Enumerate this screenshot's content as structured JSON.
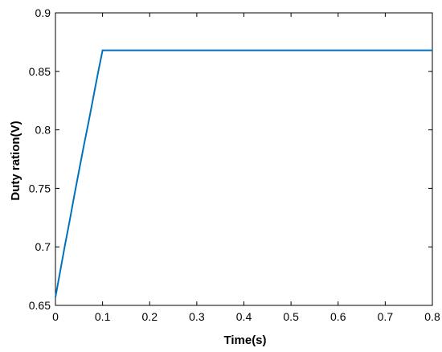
{
  "chart_data": {
    "type": "line",
    "title": "",
    "xlabel": "Time(s)",
    "ylabel": "Duty ration(V)",
    "xlim": [
      0,
      0.8
    ],
    "ylim": [
      0.65,
      0.9
    ],
    "xticks": [
      0,
      0.1,
      0.2,
      0.3,
      0.4,
      0.5,
      0.6,
      0.7,
      0.8
    ],
    "xtick_labels": [
      "0",
      "0.1",
      "0.2",
      "0.3",
      "0.4",
      "0.5",
      "0.6",
      "0.7",
      "0.8"
    ],
    "yticks": [
      0.65,
      0.7,
      0.75,
      0.8,
      0.85,
      0.9
    ],
    "ytick_labels": [
      "0.65",
      "0.7",
      "0.75",
      "0.8",
      "0.85",
      "0.9"
    ],
    "grid": false,
    "legend": "none",
    "series": [
      {
        "color": "#0072BD",
        "x": [
          0,
          0.005,
          0.01,
          0.02,
          0.03,
          0.04,
          0.05,
          0.06,
          0.07,
          0.08,
          0.09,
          0.1,
          0.2,
          0.3,
          0.4,
          0.5,
          0.6,
          0.7,
          0.8
        ],
        "y": [
          0.657,
          0.668,
          0.679,
          0.701,
          0.722,
          0.744,
          0.765,
          0.786,
          0.806,
          0.827,
          0.848,
          0.868,
          0.868,
          0.868,
          0.868,
          0.868,
          0.868,
          0.868,
          0.868
        ]
      }
    ]
  }
}
